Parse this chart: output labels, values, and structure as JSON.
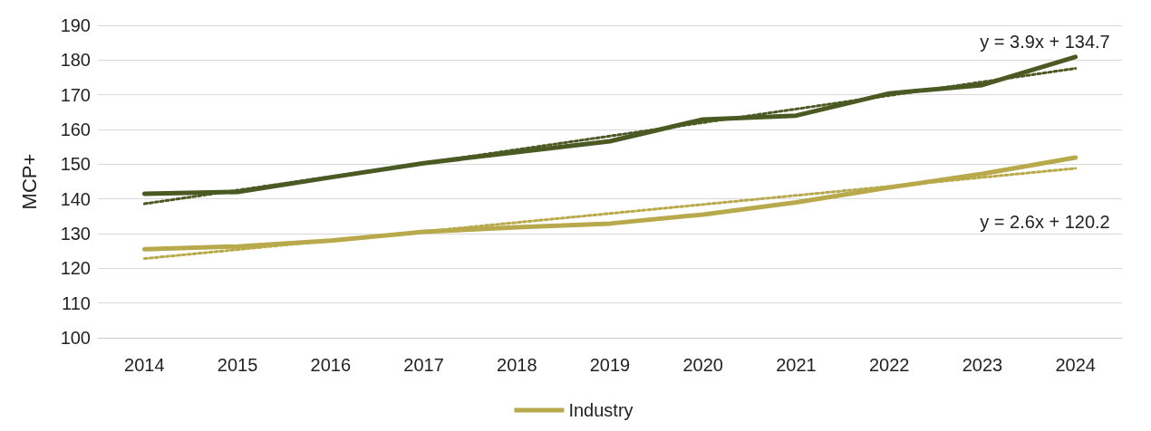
{
  "chart_data": {
    "type": "line",
    "ylabel": "MCP+",
    "categories": [
      "2014",
      "2015",
      "2016",
      "2017",
      "2018",
      "2019",
      "2020",
      "2021",
      "2022",
      "2023",
      "2024"
    ],
    "series": [
      {
        "name": "Industry",
        "color": "#b8a94c",
        "values": [
          125.5,
          126.3,
          128,
          130.5,
          131.8,
          132.9,
          135.5,
          139,
          143.3,
          147.2,
          151.9
        ]
      },
      {
        "color": "#4b5a23",
        "values": [
          141.5,
          142,
          146.2,
          150.3,
          153.5,
          156.6,
          162.9,
          164,
          170.4,
          172.8,
          180.9
        ]
      },
      {
        "type": "line",
        "color": "#b8a94c",
        "line_style": "dotted",
        "values": [
          122.8,
          125.4,
          128,
          130.6,
          133.2,
          135.8,
          138.4,
          141,
          143.6,
          146.2,
          148.8
        ]
      },
      {
        "type": "line",
        "color": "#4b5a23",
        "line_style": "dotted",
        "values": [
          138.6,
          142.5,
          146.4,
          150.3,
          154.2,
          158.1,
          162,
          165.9,
          169.8,
          173.7,
          177.6
        ]
      }
    ],
    "annotations": [
      "y = 3.9x + 134.7",
      "y = 2.6x + 120.2"
    ],
    "ylim": [
      100,
      190
    ],
    "yticks": [
      100,
      110,
      120,
      130,
      140,
      150,
      160,
      170,
      180,
      190
    ],
    "grid": "y",
    "legend": "bottom",
    "line_style": "solid",
    "marker": "none"
  }
}
